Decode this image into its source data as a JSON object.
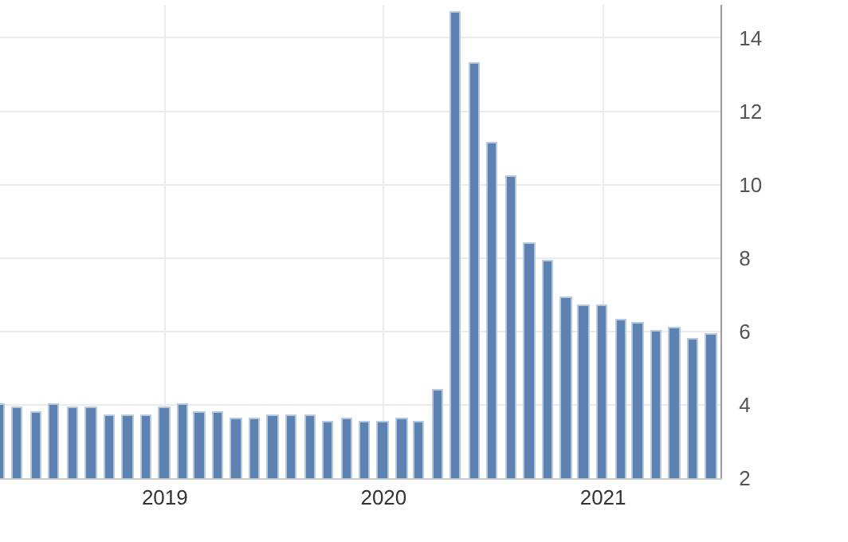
{
  "chart_data": {
    "type": "bar",
    "x": [
      "2018-04",
      "2018-05",
      "2018-06",
      "2018-07",
      "2018-08",
      "2018-09",
      "2018-10",
      "2018-11",
      "2018-12",
      "2019-01",
      "2019-02",
      "2019-03",
      "2019-04",
      "2019-05",
      "2019-06",
      "2019-07",
      "2019-08",
      "2019-09",
      "2019-10",
      "2019-11",
      "2019-12",
      "2020-01",
      "2020-02",
      "2020-03",
      "2020-04",
      "2020-05",
      "2020-06",
      "2020-07",
      "2020-08",
      "2020-09",
      "2020-10",
      "2020-11",
      "2020-12",
      "2021-01",
      "2021-02",
      "2021-03",
      "2021-04",
      "2021-05",
      "2021-06",
      "2021-07"
    ],
    "values": [
      4.0,
      3.9,
      3.8,
      4.0,
      3.9,
      3.9,
      3.7,
      3.7,
      3.7,
      3.9,
      4.0,
      3.8,
      3.8,
      3.6,
      3.6,
      3.7,
      3.7,
      3.7,
      3.5,
      3.6,
      3.5,
      3.5,
      3.6,
      3.5,
      4.4,
      14.7,
      13.3,
      11.1,
      10.2,
      8.4,
      7.9,
      6.9,
      6.7,
      6.7,
      6.3,
      6.2,
      6.0,
      6.1,
      5.8,
      5.9
    ],
    "color": "#5b82b0",
    "xlim": [
      "2018-04-01",
      "2021-07-16"
    ],
    "xticks": [
      "2019",
      "2020",
      "2021"
    ],
    "ylim": [
      2,
      14.9
    ],
    "yticks": [
      2,
      4,
      6,
      8,
      10,
      12,
      14
    ],
    "grid": true
  }
}
